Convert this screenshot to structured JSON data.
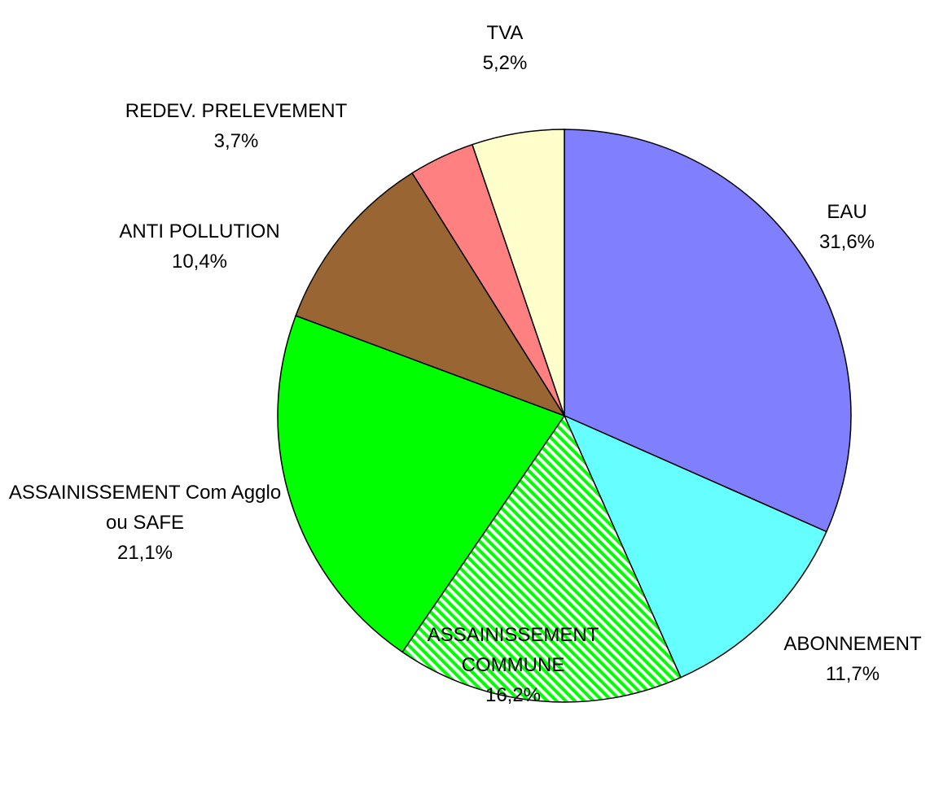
{
  "chart_data": {
    "type": "pie",
    "categories": [
      "EAU",
      "ABONNEMENT",
      "ASSAINISSEMENT COMMUNE",
      "ASSAINISSEMENT Com Agglo ou SAFE",
      "ANTI POLLUTION",
      "REDEV. PRELEVEMENT",
      "TVA"
    ],
    "values": [
      31.6,
      11.7,
      16.2,
      21.1,
      10.4,
      3.7,
      5.2
    ],
    "value_labels": [
      "31,6%",
      "11,7%",
      "16,2%",
      "21,1%",
      "10,4%",
      "3,7%",
      "5,2%"
    ],
    "colors": [
      "#8080ff",
      "#66ffff",
      "#00ff00",
      "#00ff00",
      "#996633",
      "#ff8080",
      "#ffffcc"
    ],
    "patterns": [
      "solid",
      "solid",
      "hatch",
      "solid",
      "solid",
      "solid",
      "solid"
    ]
  }
}
